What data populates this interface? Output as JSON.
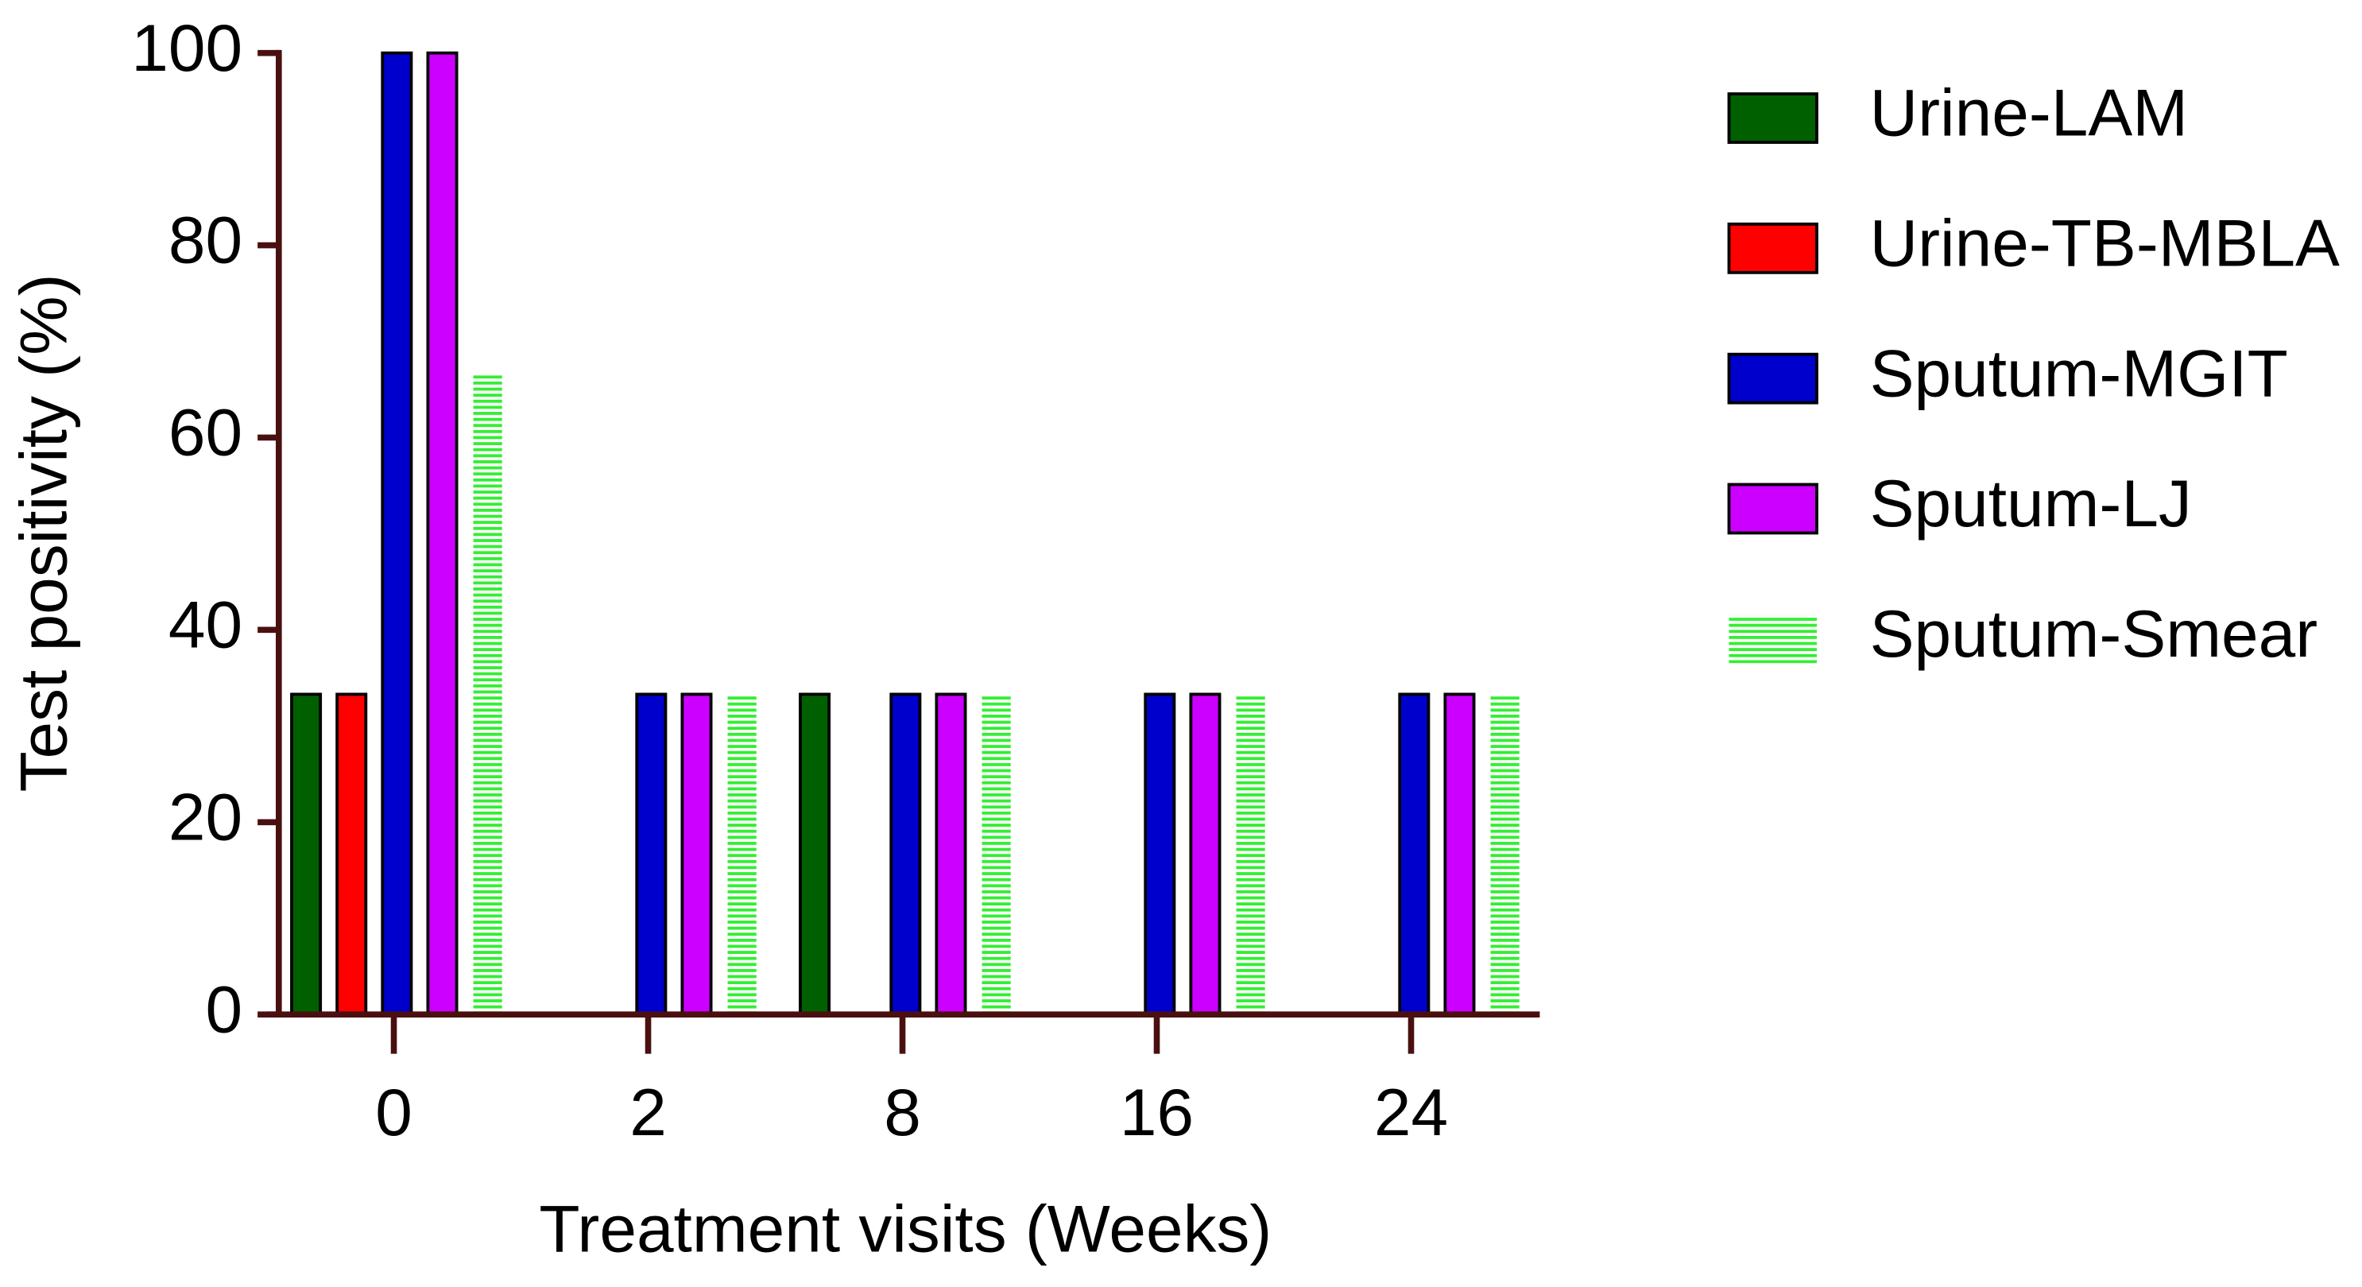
{
  "chart_data": {
    "type": "bar",
    "x_label": "Treatment visits (Weeks)",
    "y_label": "Test positivity (%)",
    "categories": [
      "0",
      "2",
      "8",
      "16",
      "24"
    ],
    "series": [
      {
        "name": "Urine-LAM",
        "color": "#006000",
        "values": [
          33.3,
          0,
          33.3,
          0,
          0
        ]
      },
      {
        "name": "Urine-TB-MBLA",
        "color": "#ff0000",
        "values": [
          33.3,
          0,
          0,
          0,
          0
        ]
      },
      {
        "name": "Sputum-MGIT",
        "color": "#0000cc",
        "values": [
          100,
          33.3,
          33.3,
          33.3,
          33.3
        ]
      },
      {
        "name": "Sputum-LJ",
        "color": "#cc00ff",
        "values": [
          100,
          33.3,
          33.3,
          33.3,
          33.3
        ]
      },
      {
        "name": "Sputum-Smear",
        "color": "#33ee33",
        "hatch": "horizontal",
        "values": [
          66.7,
          33.3,
          33.3,
          33.3,
          33.3
        ]
      }
    ],
    "ylim": [
      0,
      100
    ],
    "yticks": [
      0,
      20,
      40,
      60,
      80,
      100
    ],
    "legend": "right"
  }
}
